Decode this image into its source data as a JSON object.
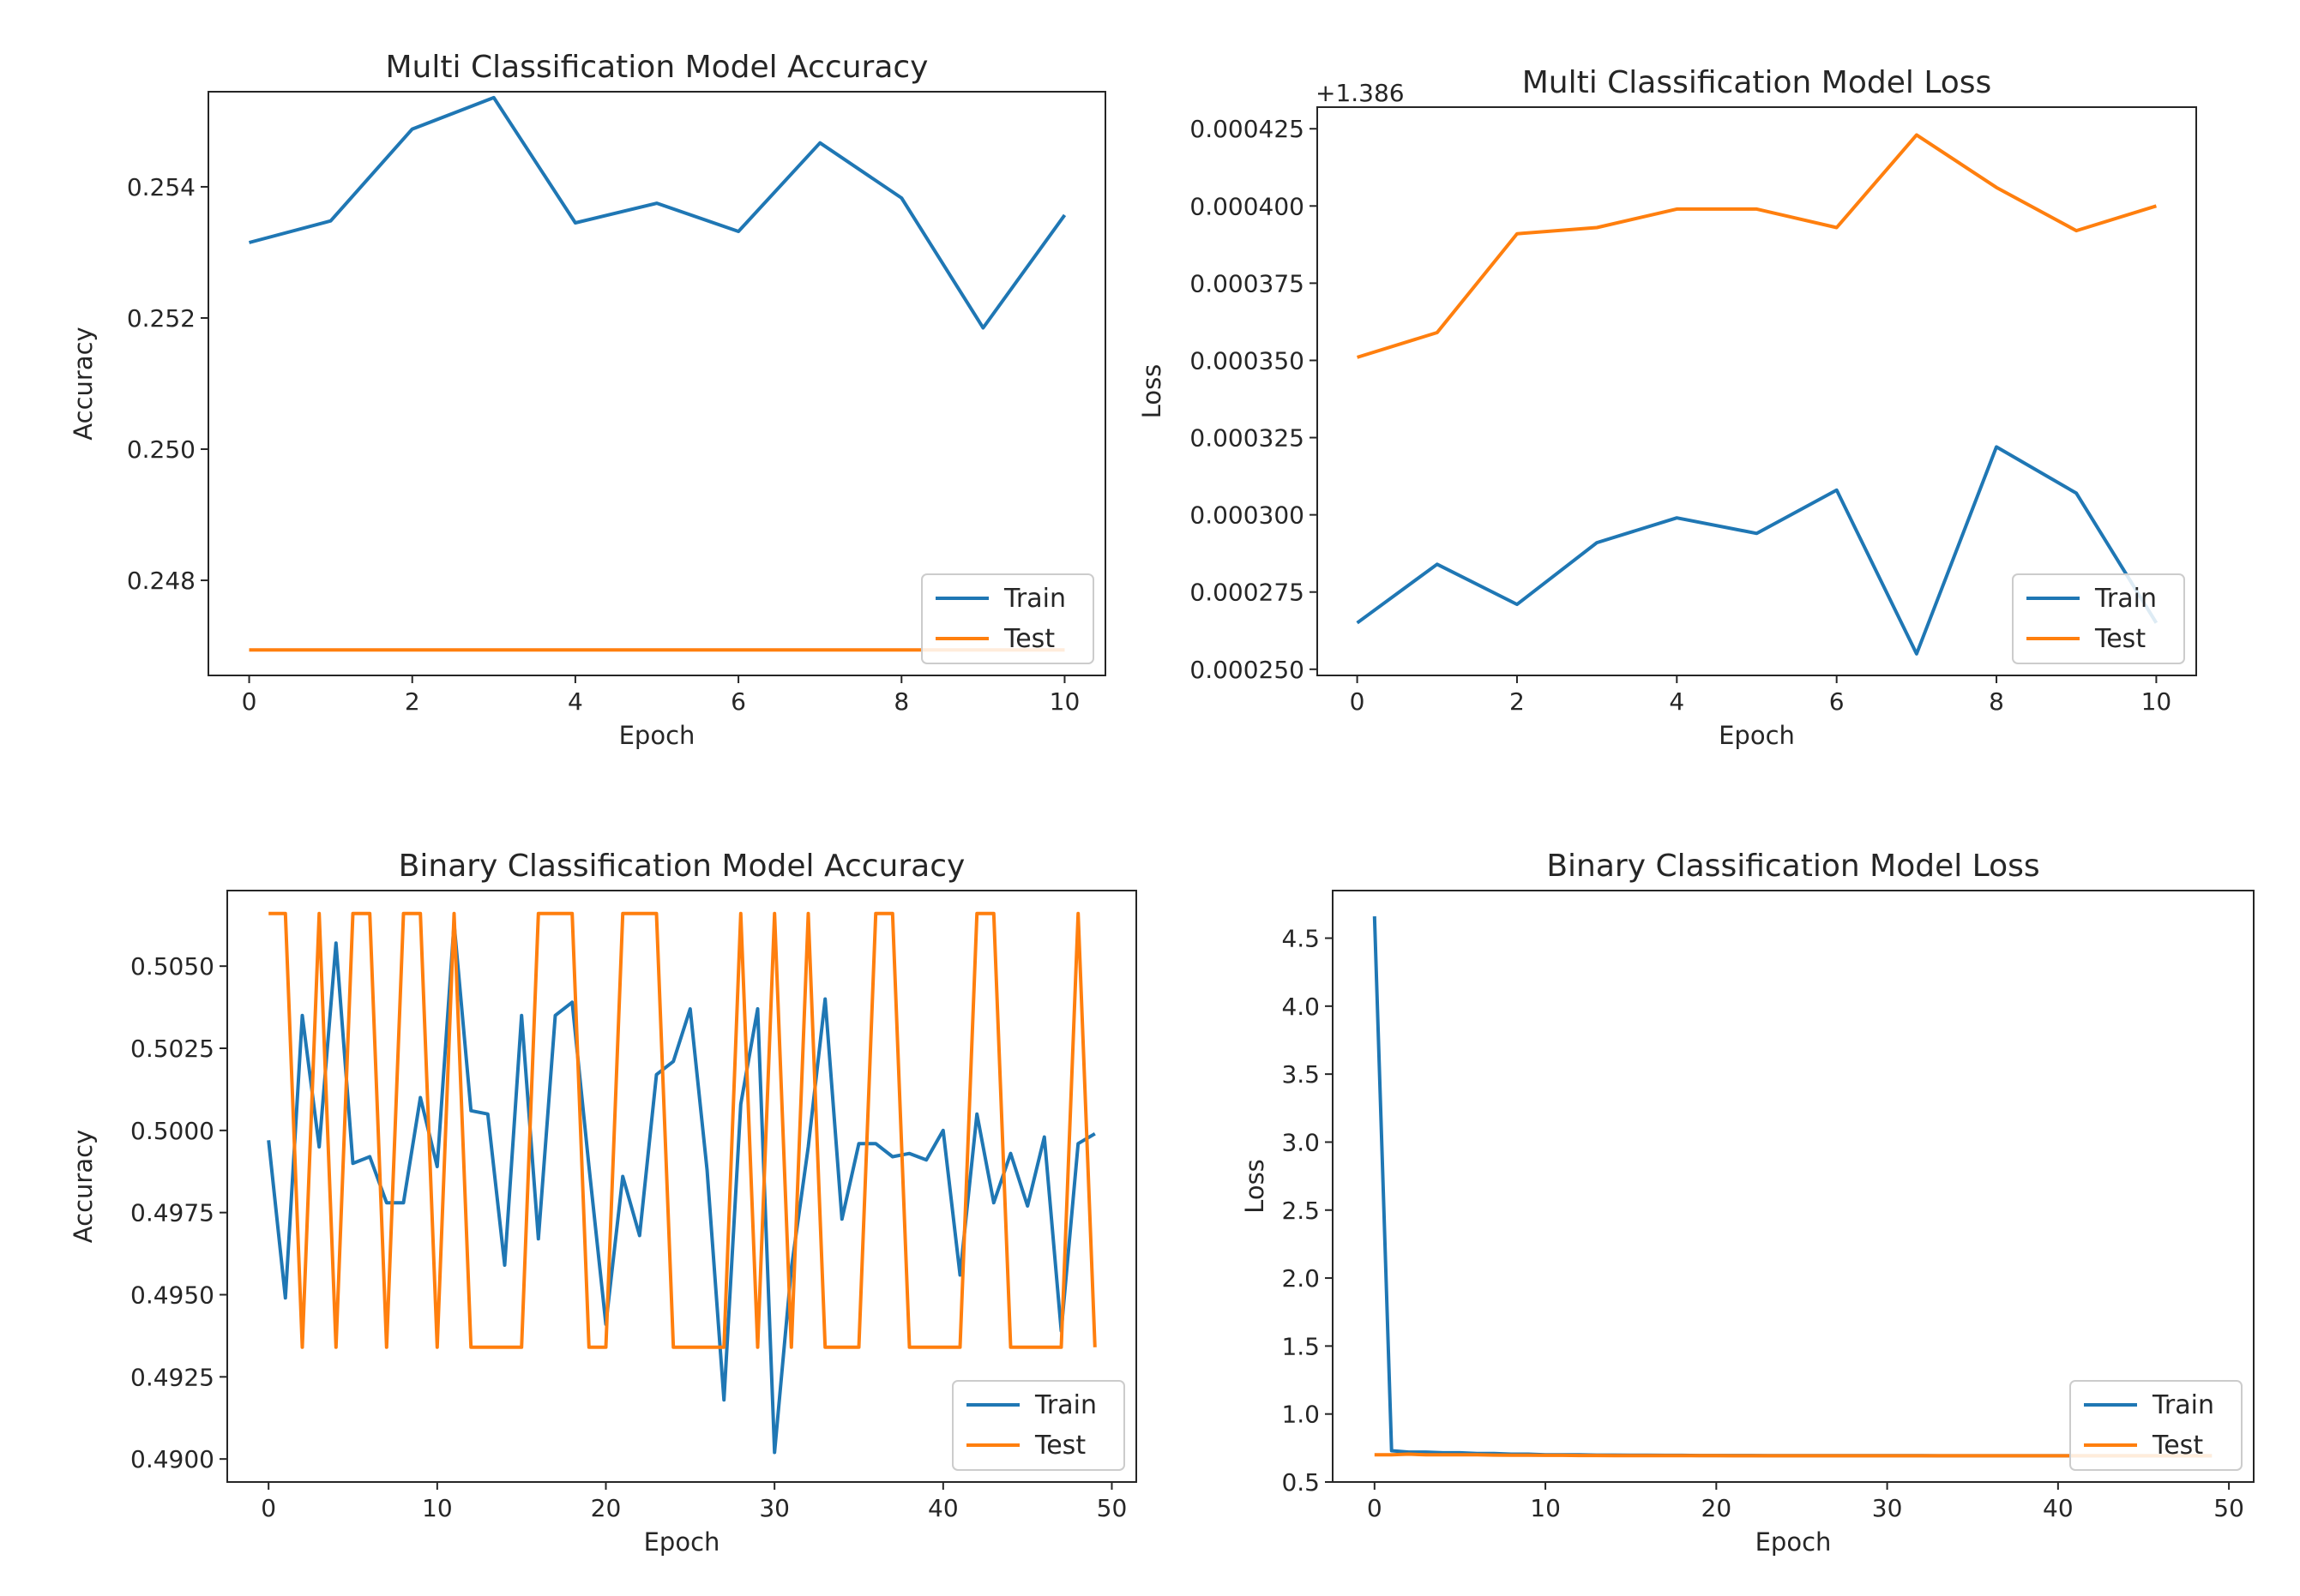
{
  "chart_data": [
    {
      "type": "line",
      "title": "Multi Classification Model Accuracy",
      "xlabel": "Epoch",
      "ylabel": "Accuracy",
      "offset_text": "",
      "xlim": [
        -0.5,
        10.5
      ],
      "ylim": [
        0.24655,
        0.25545
      ],
      "xticks": [
        0,
        2,
        4,
        6,
        8,
        10
      ],
      "xtick_labels": [
        "0",
        "2",
        "4",
        "6",
        "8",
        "10"
      ],
      "yticks": [
        0.248,
        0.25,
        0.252,
        0.254
      ],
      "ytick_labels": [
        "0.248",
        "0.250",
        "0.252",
        "0.254"
      ],
      "legend": "lower right",
      "grid": false,
      "x": [
        0,
        1,
        2,
        3,
        4,
        5,
        6,
        7,
        8,
        9,
        10
      ],
      "series": [
        {
          "name": "Train",
          "color": "#1f77b4",
          "values": [
            0.25315,
            0.25348,
            0.25488,
            0.25536,
            0.25345,
            0.25375,
            0.25332,
            0.25467,
            0.25383,
            0.25185,
            0.25357
          ]
        },
        {
          "name": "Test",
          "color": "#ff7f0e",
          "values": [
            0.24694,
            0.24694,
            0.24694,
            0.24694,
            0.24694,
            0.24694,
            0.24694,
            0.24694,
            0.24694,
            0.24694,
            0.24694
          ]
        }
      ]
    },
    {
      "type": "line",
      "title": "Multi Classification Model Loss",
      "xlabel": "Epoch",
      "ylabel": "Loss",
      "offset_text": "+1.386",
      "xlim": [
        -0.5,
        10.5
      ],
      "ylim": [
        0.000248,
        0.000432
      ],
      "xticks": [
        0,
        2,
        4,
        6,
        8,
        10
      ],
      "xtick_labels": [
        "0",
        "2",
        "4",
        "6",
        "8",
        "10"
      ],
      "yticks": [
        0.00025,
        0.000275,
        0.0003,
        0.000325,
        0.00035,
        0.000375,
        0.0004,
        0.000425
      ],
      "ytick_labels": [
        "0.000250",
        "0.000275",
        "0.000300",
        "0.000325",
        "0.000350",
        "0.000375",
        "0.000400",
        "0.000425"
      ],
      "legend": "lower right",
      "grid": false,
      "x": [
        0,
        1,
        2,
        3,
        4,
        5,
        6,
        7,
        8,
        9,
        10
      ],
      "series": [
        {
          "name": "Train",
          "color": "#1f77b4",
          "values": [
            0.000265,
            0.000284,
            0.000271,
            0.000291,
            0.000299,
            0.000294,
            0.000308,
            0.000255,
            0.000322,
            0.000307,
            0.000265
          ]
        },
        {
          "name": "Test",
          "color": "#ff7f0e",
          "values": [
            0.000351,
            0.000359,
            0.000391,
            0.000393,
            0.000399,
            0.000399,
            0.000393,
            0.000423,
            0.000406,
            0.000392,
            0.0004
          ]
        }
      ]
    },
    {
      "type": "line",
      "title": "Binary Classification Model Accuracy",
      "xlabel": "Epoch",
      "ylabel": "Accuracy",
      "offset_text": "",
      "xlim": [
        -2.45,
        51.45
      ],
      "ylim": [
        0.4893,
        0.5073
      ],
      "xticks": [
        0,
        10,
        20,
        30,
        40,
        50
      ],
      "xtick_labels": [
        "0",
        "10",
        "20",
        "30",
        "40",
        "50"
      ],
      "yticks": [
        0.49,
        0.4925,
        0.495,
        0.4975,
        0.5,
        0.5025,
        0.505
      ],
      "ytick_labels": [
        "0.4900",
        "0.4925",
        "0.4950",
        "0.4975",
        "0.5000",
        "0.5025",
        "0.5050"
      ],
      "legend": "lower right",
      "grid": false,
      "x": [
        0,
        1,
        2,
        3,
        4,
        5,
        6,
        7,
        8,
        9,
        10,
        11,
        12,
        13,
        14,
        15,
        16,
        17,
        18,
        19,
        20,
        21,
        22,
        23,
        24,
        25,
        26,
        27,
        28,
        29,
        30,
        31,
        32,
        33,
        34,
        35,
        36,
        37,
        38,
        39,
        40,
        41,
        42,
        43,
        44,
        45,
        46,
        47,
        48,
        49
      ],
      "series": [
        {
          "name": "Train",
          "color": "#1f77b4",
          "values": [
            0.4997,
            0.4949,
            0.5035,
            0.4995,
            0.5057,
            0.499,
            0.4992,
            0.4978,
            0.4978,
            0.501,
            0.4989,
            0.5063,
            0.5006,
            0.5005,
            0.4959,
            0.5035,
            0.4967,
            0.5035,
            0.5039,
            0.4989,
            0.4941,
            0.4986,
            0.4968,
            0.5017,
            0.5021,
            0.5037,
            0.4988,
            0.4918,
            0.5008,
            0.5037,
            0.4902,
            0.4958,
            0.4995,
            0.504,
            0.4973,
            0.4996,
            0.4996,
            0.4992,
            0.4993,
            0.4991,
            0.5,
            0.4956,
            0.5005,
            0.4978,
            0.4993,
            0.4977,
            0.4998,
            0.4939,
            0.4996,
            0.4999
          ]
        },
        {
          "name": "Test",
          "color": "#ff7f0e",
          "values": [
            0.5066,
            0.5066,
            0.4934,
            0.5066,
            0.4934,
            0.5066,
            0.5066,
            0.4934,
            0.5066,
            0.5066,
            0.4934,
            0.5066,
            0.4934,
            0.4934,
            0.4934,
            0.4934,
            0.5066,
            0.5066,
            0.5066,
            0.4934,
            0.4934,
            0.5066,
            0.5066,
            0.5066,
            0.4934,
            0.4934,
            0.4934,
            0.4934,
            0.5066,
            0.4934,
            0.5066,
            0.4934,
            0.5066,
            0.4934,
            0.4934,
            0.4934,
            0.5066,
            0.5066,
            0.4934,
            0.4934,
            0.4934,
            0.4934,
            0.5066,
            0.5066,
            0.4934,
            0.4934,
            0.4934,
            0.4934,
            0.5066,
            0.4934
          ]
        }
      ]
    },
    {
      "type": "line",
      "title": "Binary Classification Model Loss",
      "xlabel": "Epoch",
      "ylabel": "Loss",
      "offset_text": "",
      "xlim": [
        -2.45,
        51.45
      ],
      "ylim": [
        0.5,
        4.85
      ],
      "xticks": [
        0,
        10,
        20,
        30,
        40,
        50
      ],
      "xtick_labels": [
        "0",
        "10",
        "20",
        "30",
        "40",
        "50"
      ],
      "yticks": [
        0.5,
        1.0,
        1.5,
        2.0,
        2.5,
        3.0,
        3.5,
        4.0,
        4.5
      ],
      "ytick_labels": [
        "0.5",
        "1.0",
        "1.5",
        "2.0",
        "2.5",
        "3.0",
        "3.5",
        "4.0",
        "4.5"
      ],
      "legend": "lower right",
      "grid": false,
      "x": [
        0,
        1,
        2,
        3,
        4,
        5,
        6,
        7,
        8,
        9,
        10,
        11,
        12,
        13,
        14,
        15,
        16,
        17,
        18,
        19,
        20,
        21,
        22,
        23,
        24,
        25,
        26,
        27,
        28,
        29,
        30,
        31,
        32,
        33,
        34,
        35,
        36,
        37,
        38,
        39,
        40,
        41,
        42,
        43,
        44,
        45,
        46,
        47,
        48,
        49
      ],
      "series": [
        {
          "name": "Train",
          "color": "#1f77b4",
          "values": [
            4.66,
            0.73,
            0.72,
            0.72,
            0.715,
            0.715,
            0.71,
            0.71,
            0.705,
            0.705,
            0.7,
            0.7,
            0.7,
            0.698,
            0.698,
            0.697,
            0.697,
            0.696,
            0.696,
            0.695,
            0.695,
            0.695,
            0.695,
            0.694,
            0.694,
            0.694,
            0.694,
            0.694,
            0.694,
            0.694,
            0.694,
            0.694,
            0.694,
            0.693,
            0.693,
            0.693,
            0.693,
            0.693,
            0.693,
            0.693,
            0.693,
            0.693,
            0.693,
            0.693,
            0.693,
            0.693,
            0.693,
            0.693,
            0.693,
            0.693
          ]
        },
        {
          "name": "Test",
          "color": "#ff7f0e",
          "values": [
            0.7,
            0.7,
            0.705,
            0.7,
            0.7,
            0.7,
            0.7,
            0.698,
            0.697,
            0.697,
            0.696,
            0.696,
            0.695,
            0.695,
            0.694,
            0.694,
            0.694,
            0.694,
            0.694,
            0.694,
            0.694,
            0.693,
            0.693,
            0.693,
            0.693,
            0.693,
            0.693,
            0.693,
            0.693,
            0.693,
            0.693,
            0.693,
            0.693,
            0.693,
            0.693,
            0.693,
            0.693,
            0.693,
            0.693,
            0.693,
            0.693,
            0.693,
            0.693,
            0.693,
            0.693,
            0.693,
            0.693,
            0.693,
            0.693,
            0.693
          ]
        }
      ]
    }
  ]
}
